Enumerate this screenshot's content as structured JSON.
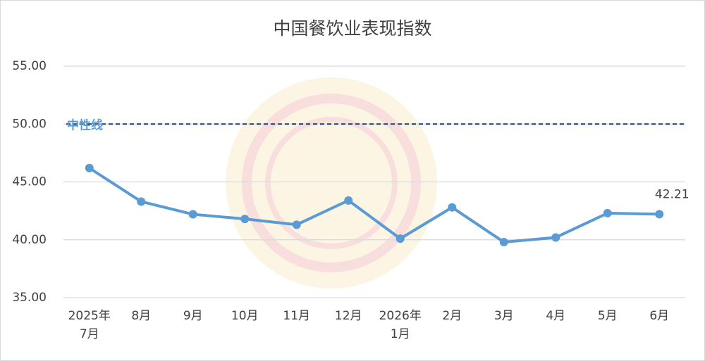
{
  "chart_data": {
    "type": "line",
    "title": "中国餐饮业表现指数",
    "categories": [
      "2025年\n7月",
      "8月",
      "9月",
      "10月",
      "11月",
      "12月",
      "2026年\n1月",
      "2月",
      "3月",
      "4月",
      "5月",
      "6月"
    ],
    "series": [
      {
        "name": "中国餐饮业表现指数",
        "color": "#5b9bd5",
        "values": [
          46.2,
          43.3,
          42.2,
          41.8,
          41.3,
          43.4,
          40.1,
          42.8,
          39.8,
          40.2,
          42.3,
          42.21
        ]
      }
    ],
    "ylim": [
      35,
      55
    ],
    "yticks": [
      {
        "value": 35,
        "label": "35.00"
      },
      {
        "value": 40,
        "label": "40.00"
      },
      {
        "value": 45,
        "label": "45.00"
      },
      {
        "value": 50,
        "label": "50.00"
      },
      {
        "value": 55,
        "label": "55.00"
      }
    ],
    "grid": true,
    "reference_line": {
      "value": 50,
      "label": "中性线",
      "color": "#203864"
    }
  }
}
